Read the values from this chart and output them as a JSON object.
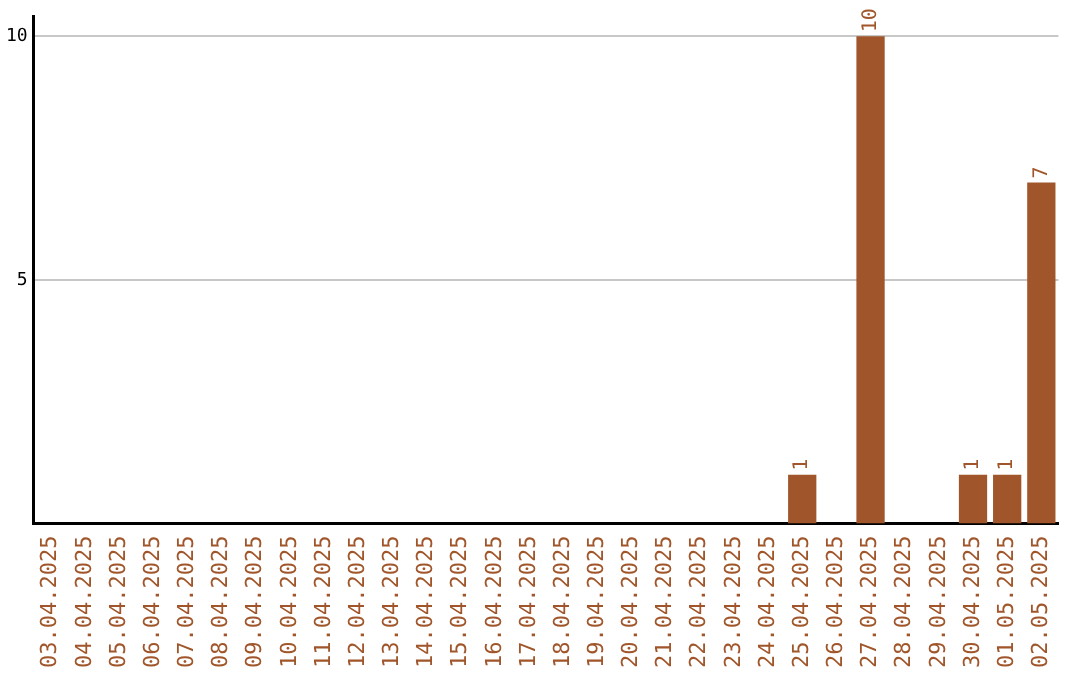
{
  "chart_data": {
    "type": "bar",
    "categories": [
      "03.04.2025",
      "04.04.2025",
      "05.04.2025",
      "06.04.2025",
      "07.04.2025",
      "08.04.2025",
      "09.04.2025",
      "10.04.2025",
      "11.04.2025",
      "12.04.2025",
      "13.04.2025",
      "14.04.2025",
      "15.04.2025",
      "16.04.2025",
      "17.04.2025",
      "18.04.2025",
      "19.04.2025",
      "20.04.2025",
      "21.04.2025",
      "22.04.2025",
      "23.04.2025",
      "24.04.2025",
      "25.04.2025",
      "26.04.2025",
      "27.04.2025",
      "28.04.2025",
      "29.04.2025",
      "30.04.2025",
      "01.05.2025",
      "02.05.2025"
    ],
    "values": [
      0,
      0,
      0,
      0,
      0,
      0,
      0,
      0,
      0,
      0,
      0,
      0,
      0,
      0,
      0,
      0,
      0,
      0,
      0,
      0,
      0,
      0,
      1,
      0,
      10,
      0,
      0,
      1,
      1,
      7
    ],
    "value_labels": [
      null,
      null,
      null,
      null,
      null,
      null,
      null,
      null,
      null,
      null,
      null,
      null,
      null,
      null,
      null,
      null,
      null,
      null,
      null,
      null,
      null,
      null,
      "1",
      null,
      "10",
      null,
      null,
      "1",
      "1",
      "7"
    ],
    "color": "#a0562a",
    "ylim": [
      0,
      10.4
    ],
    "yticks": [
      5,
      10
    ],
    "grid": "y",
    "legend": false
  }
}
